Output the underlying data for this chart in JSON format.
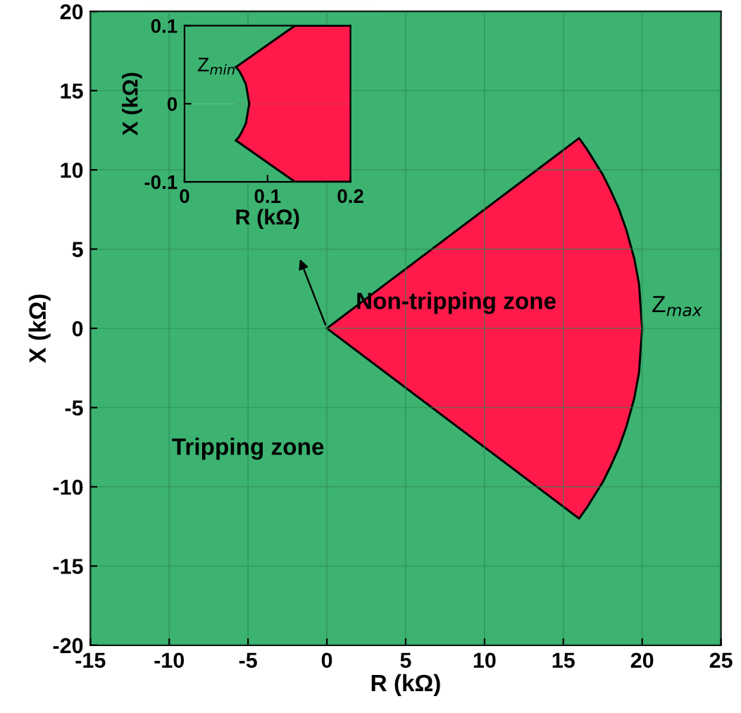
{
  "chart_data": [
    {
      "type": "area",
      "xlabel": "R (kΩ)",
      "ylabel": "X (kΩ)",
      "xlim": [
        -15,
        25
      ],
      "ylim": [
        -20,
        20
      ],
      "xticks": [
        -15,
        -10,
        -5,
        0,
        5,
        10,
        15,
        20,
        25
      ],
      "yticks": [
        -20,
        -15,
        -10,
        -5,
        0,
        5,
        10,
        15,
        20
      ],
      "grid": true,
      "series": [
        {
          "color": "#3cb371",
          "x": [
            -15,
            25
          ],
          "values": [
            20,
            20
          ]
        },
        {
          "color": "#3cb371",
          "x": [
            -15,
            25
          ],
          "values": [
            -20,
            -20
          ]
        },
        {
          "color": "#ff1a4b",
          "line_style": "solid",
          "x": [
            0,
            16,
            16.5,
            17,
            17.5,
            18,
            18.5,
            19,
            19.5,
            19.8,
            20
          ],
          "values": [
            0,
            12,
            11.3,
            10.5,
            9.7,
            8.7,
            7.6,
            6.2,
            4.4,
            2.8,
            0
          ]
        },
        {
          "color": "#ff1a4b",
          "line_style": "solid",
          "x": [
            0,
            16,
            16.5,
            17,
            17.5,
            18,
            18.5,
            19,
            19.5,
            19.8,
            20
          ],
          "values": [
            0,
            -12,
            -11.3,
            -10.5,
            -9.7,
            -8.7,
            -7.6,
            -6.2,
            -4.4,
            -2.8,
            0
          ]
        }
      ],
      "annotations": [
        "Tripping zone",
        "Non-tripping zone",
        "Z$_{max}$"
      ]
    },
    {
      "type": "area",
      "xlabel": "R (kΩ)",
      "ylabel": "X (kΩ)",
      "xlim": [
        0,
        0.2
      ],
      "ylim": [
        -0.1,
        0.1
      ],
      "xticks": [
        0,
        0.1,
        0.2
      ],
      "yticks": [
        -0.1,
        0,
        0.1
      ],
      "grid": false,
      "series": [
        {
          "color": "#3cb371",
          "x": [
            0,
            0.2
          ],
          "values": [
            0.1,
            0.1
          ]
        },
        {
          "color": "#3cb371",
          "x": [
            0,
            0.2
          ],
          "values": [
            -0.1,
            -0.1
          ]
        },
        {
          "color": "#ff1a4b",
          "line_style": "solid",
          "x": [
            0.062,
            0.133,
            0.2
          ],
          "values": [
            0.047,
            0.1,
            0.1
          ]
        },
        {
          "color": "#ff1a4b",
          "line_style": "solid",
          "x": [
            0.062,
            0.133,
            0.2
          ],
          "values": [
            -0.047,
            -0.1,
            -0.1
          ]
        },
        {
          "color": "#3cb371",
          "line_style": "solid",
          "x": [
            0.062,
            0.066,
            0.07,
            0.074,
            0.078
          ],
          "values": [
            0.047,
            0.042,
            0.034,
            0.025,
            0
          ]
        },
        {
          "color": "#3cb371",
          "line_style": "solid",
          "x": [
            0.062,
            0.066,
            0.07,
            0.074,
            0.078
          ],
          "values": [
            -0.047,
            -0.042,
            -0.034,
            -0.025,
            0
          ]
        }
      ],
      "annotations": [
        "Z$_{min}$"
      ]
    }
  ]
}
